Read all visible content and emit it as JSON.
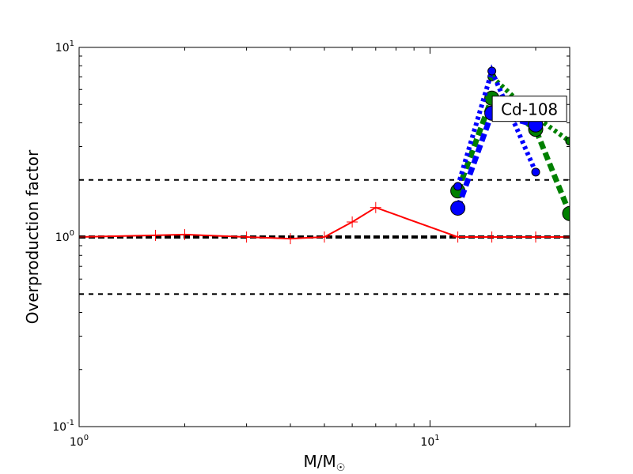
{
  "chart_data": {
    "type": "line",
    "xscale": "log",
    "yscale": "log",
    "xlim": [
      1,
      25
    ],
    "ylim": [
      0.1,
      10
    ],
    "xlabel": "M/M☉",
    "ylabel": "Overproduction factor",
    "x_ticks": [
      {
        "value": 1,
        "base": "10",
        "exp": "0"
      },
      {
        "value": 10,
        "base": "10",
        "exp": "1"
      }
    ],
    "y_ticks": [
      {
        "value": 0.1,
        "base": "10",
        "exp": "-1"
      },
      {
        "value": 1,
        "base": "10",
        "exp": "0"
      },
      {
        "value": 10,
        "base": "10",
        "exp": "1"
      }
    ],
    "hlines": [
      {
        "y": 2.0,
        "style": "dashed",
        "color": "#000000"
      },
      {
        "y": 1.0,
        "style": "dashed-thick",
        "color": "#000000"
      },
      {
        "y": 0.5,
        "style": "dashed",
        "color": "#000000"
      }
    ],
    "series": [
      {
        "color": "#ff0000",
        "style": "solid-plus",
        "x": [
          1.0,
          1.65,
          2.0,
          3.0,
          4.0,
          5.0,
          6.0,
          7.0,
          12.0,
          15.0,
          20.0,
          25.0
        ],
        "y": [
          1.0,
          1.02,
          1.03,
          1.0,
          0.98,
          1.0,
          1.2,
          1.43,
          1.0,
          1.0,
          1.0,
          1.0
        ]
      },
      {
        "color": "#0000ff",
        "style": "dotted-small-marker",
        "x": [
          12.0,
          15.0,
          20.0
        ],
        "y": [
          1.85,
          7.5,
          2.2
        ]
      },
      {
        "color": "#0000ff",
        "style": "dashed-large-marker",
        "x": [
          12.0,
          15.0,
          20.0
        ],
        "y": [
          1.42,
          4.5,
          3.9
        ]
      },
      {
        "color": "#008000",
        "style": "dotted-small-marker",
        "x": [
          15.0,
          20.0,
          25.0
        ],
        "y": [
          7.0,
          4.3,
          3.2
        ]
      },
      {
        "color": "#008000",
        "style": "dashed-large-marker",
        "x": [
          12.0,
          15.0,
          20.0,
          25.0
        ],
        "y": [
          1.75,
          5.4,
          3.7,
          1.33
        ]
      }
    ],
    "annotation": {
      "text": "Cd-108",
      "x": 19.0,
      "y": 4.7
    }
  }
}
